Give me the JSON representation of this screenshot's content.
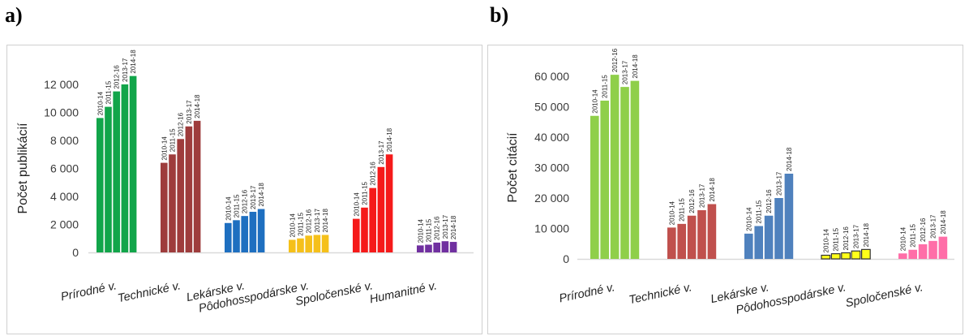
{
  "panels": {
    "a": {
      "label": "a)"
    },
    "b": {
      "label": "b)"
    }
  },
  "chart_data": [
    {
      "type": "bar",
      "ylabel": "Počet publikácií",
      "ylim": [
        0,
        12000
      ],
      "yticks": [
        0,
        2000,
        4000,
        6000,
        8000,
        10000,
        12000
      ],
      "ytick_labels": [
        "0",
        "2 000",
        "4 000",
        "6 000",
        "8 000",
        "10 000",
        "12 000"
      ],
      "period_labels": [
        "2010-14",
        "2011-15",
        "2012-16",
        "2013-17",
        "2014-18"
      ],
      "categories": [
        "Prírodné v.",
        "Technické v.",
        "Lekárske v.",
        "Pôdohosspodárske v.",
        "Spoločenské v.",
        "Humanitné v."
      ],
      "colors": [
        "#12a54a",
        "#9e3c3c",
        "#1e6fc0",
        "#f5c01a",
        "#f51a1a",
        "#7030a0"
      ],
      "values": [
        [
          9600,
          10400,
          11500,
          12000,
          12600
        ],
        [
          6400,
          7000,
          8100,
          9000,
          9400
        ],
        [
          2100,
          2300,
          2600,
          2900,
          3100
        ],
        [
          900,
          1000,
          1200,
          1250,
          1250
        ],
        [
          2400,
          3200,
          4600,
          6100,
          7000
        ],
        [
          500,
          550,
          700,
          800,
          750
        ]
      ],
      "grid": false,
      "legend": "none"
    },
    {
      "type": "bar",
      "ylabel": "Počet citácií",
      "ylim": [
        0,
        60000
      ],
      "yticks": [
        0,
        10000,
        20000,
        30000,
        40000,
        50000,
        60000
      ],
      "ytick_labels": [
        "0",
        "10 000",
        "20 000",
        "30 000",
        "40 000",
        "50 000",
        "60 000"
      ],
      "period_labels": [
        "2010-14",
        "2011-15",
        "2012-16",
        "2013-17",
        "2014-18"
      ],
      "categories": [
        "Prírodné v.",
        "Technické v.",
        "Lekárske v.",
        "Pôdohosspodárske v.",
        "Spoločenské v."
      ],
      "colors": [
        "#8fcf4a",
        "#c0504d",
        "#4f81bd",
        "#ffff1a",
        "#ff6ea8"
      ],
      "values": [
        [
          47000,
          52000,
          60500,
          56500,
          58500
        ],
        [
          10300,
          11500,
          14200,
          16000,
          18000
        ],
        [
          8300,
          10800,
          14200,
          20000,
          28000
        ],
        [
          1200,
          1700,
          2000,
          2600,
          3100
        ],
        [
          1800,
          3000,
          4800,
          5900,
          7300
        ]
      ],
      "grid": false,
      "legend": "none"
    }
  ]
}
